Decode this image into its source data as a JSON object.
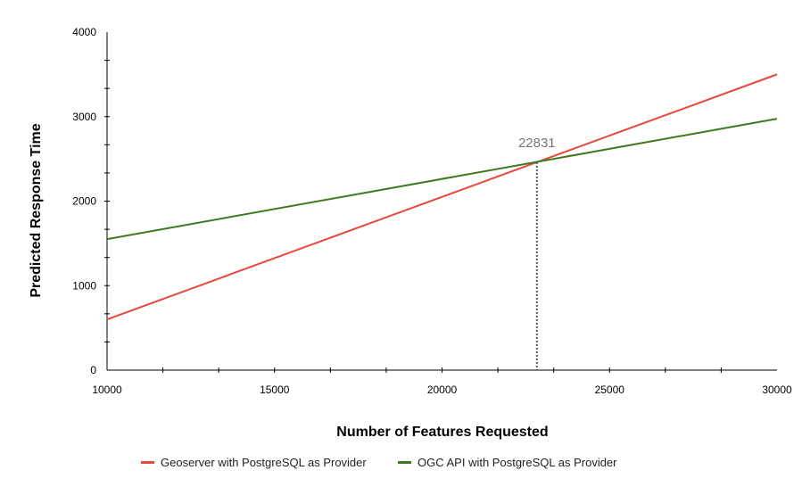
{
  "chart_data": {
    "type": "line",
    "xlabel": "Number of Features Requested",
    "ylabel": "Predicted Response Time",
    "xlim": [
      10000,
      30000
    ],
    "ylim": [
      0,
      4000
    ],
    "x_ticks": [
      10000,
      15000,
      20000,
      25000,
      30000
    ],
    "y_ticks": [
      0,
      1000,
      2000,
      3000,
      4000
    ],
    "x_tick_labels": [
      "10000",
      "15000",
      "20000",
      "25000",
      "30000"
    ],
    "y_tick_labels": [
      "0",
      "1000",
      "2000",
      "3000",
      "4000"
    ],
    "grid": false,
    "legend_position": "bottom",
    "series": [
      {
        "name": "Geoserver with PostgreSQL as Provider",
        "color": "#e8473a",
        "x": [
          10000,
          30000
        ],
        "y": [
          600,
          3500
        ]
      },
      {
        "name": "OGC API with PostgreSQL as Provider",
        "color": "#3d7a1f",
        "x": [
          10000,
          30000
        ],
        "y": [
          1550,
          2975
        ]
      }
    ],
    "annotation": {
      "label": "22831",
      "x": 22831,
      "y": 2460,
      "line_style": "dotted",
      "color": "#555555"
    }
  }
}
